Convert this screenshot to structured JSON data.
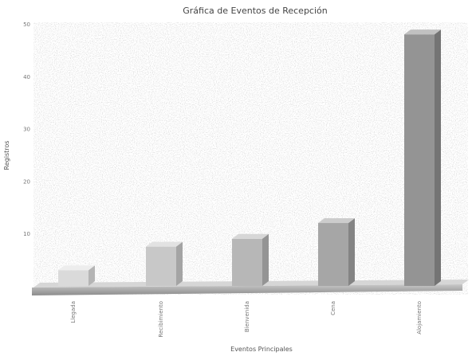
{
  "chart_data": {
    "type": "bar",
    "title": "Gráfica de Eventos de Recepción",
    "xlabel": "Eventos Principales",
    "ylabel": "Registros",
    "categories": [
      "Llegada",
      "Recibimiento",
      "Bienvenida",
      "Cena",
      "Alojamiento"
    ],
    "values": [
      3,
      7.5,
      9,
      12,
      48
    ],
    "yticks": [
      10,
      20,
      30,
      40,
      50
    ],
    "ylim": [
      0,
      50
    ],
    "grid": false,
    "legend": "none",
    "colors": {
      "bar_light": "#ededed",
      "bar_dark": "#6e6e6e",
      "floor": "#9a9a9a",
      "background": "#ffffff",
      "text": "#444444"
    }
  }
}
